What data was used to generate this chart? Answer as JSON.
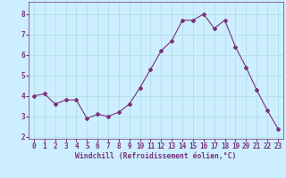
{
  "x": [
    0,
    1,
    2,
    3,
    4,
    5,
    6,
    7,
    8,
    9,
    10,
    11,
    12,
    13,
    14,
    15,
    16,
    17,
    18,
    19,
    20,
    21,
    22,
    23
  ],
  "y": [
    4.0,
    4.1,
    3.6,
    3.8,
    3.8,
    2.9,
    3.1,
    3.0,
    3.2,
    3.6,
    4.4,
    5.3,
    6.2,
    6.7,
    7.7,
    7.7,
    8.0,
    7.3,
    7.7,
    6.4,
    5.4,
    4.3,
    3.3,
    2.4
  ],
  "line_color": "#7b2f7b",
  "marker": "D",
  "marker_size": 2.0,
  "bg_color": "#cceeff",
  "grid_color": "#aadddd",
  "xlabel": "Windchill (Refroidissement éolien,°C)",
  "xlabel_color": "#7b2f7b",
  "tick_color": "#7b2f7b",
  "xlim": [
    -0.5,
    23.5
  ],
  "ylim": [
    1.9,
    8.6
  ],
  "yticks": [
    2,
    3,
    4,
    5,
    6,
    7,
    8
  ],
  "xticks": [
    0,
    1,
    2,
    3,
    4,
    5,
    6,
    7,
    8,
    9,
    10,
    11,
    12,
    13,
    14,
    15,
    16,
    17,
    18,
    19,
    20,
    21,
    22,
    23
  ],
  "tick_fontsize": 5.5,
  "xlabel_fontsize": 5.8
}
